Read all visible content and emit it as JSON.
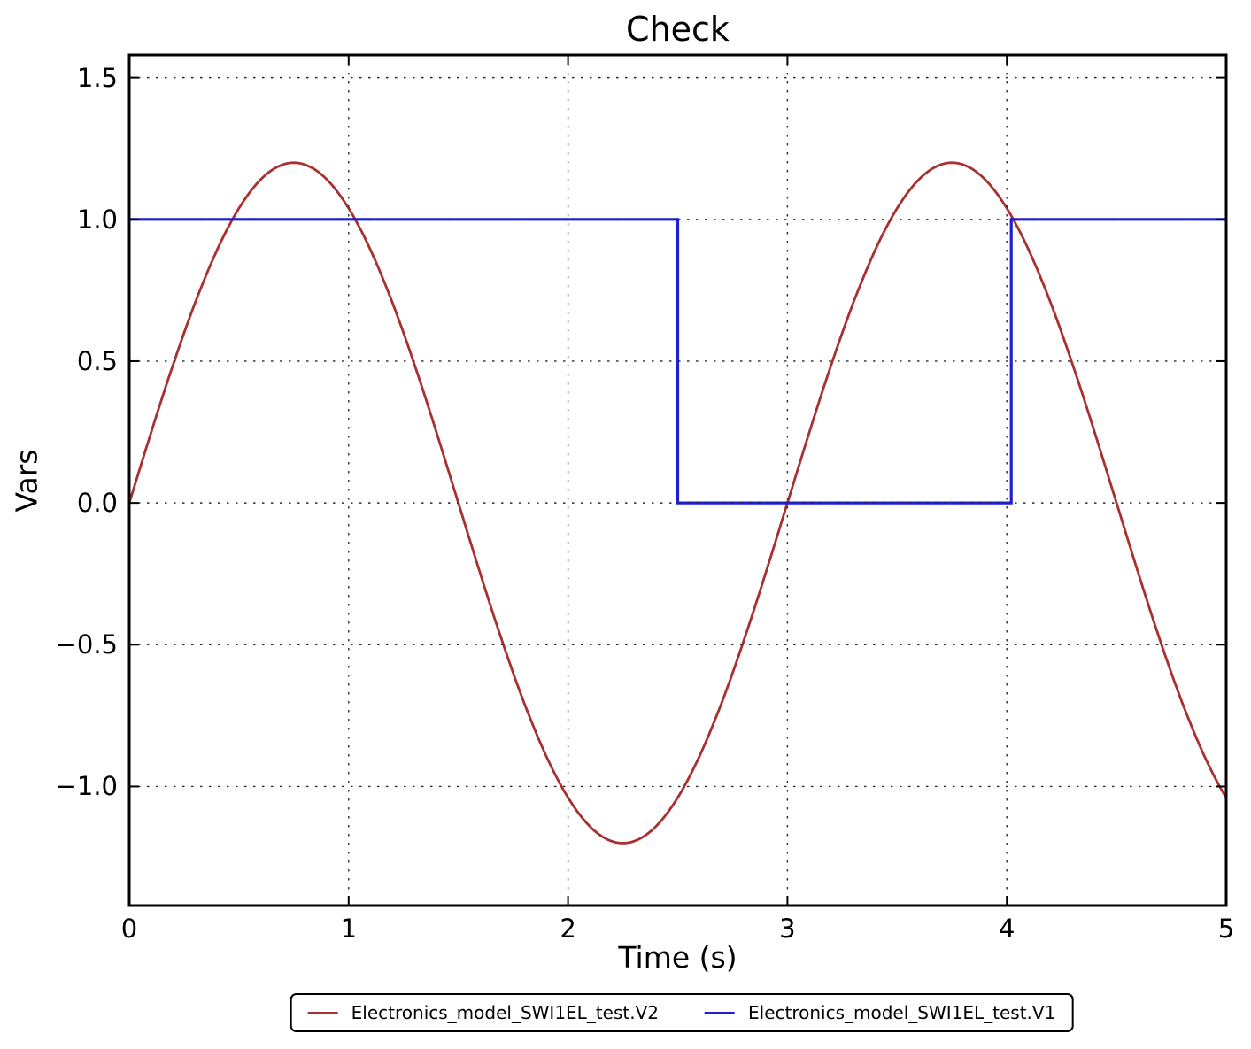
{
  "chart_data": {
    "type": "line",
    "title": "Check",
    "xlabel": "Time (s)",
    "ylabel": "Vars",
    "xlim": [
      0,
      5
    ],
    "ylim": [
      -1.42,
      1.58
    ],
    "xticks": [
      0,
      1,
      2,
      3,
      4,
      5
    ],
    "xtick_labels": [
      "0",
      "1",
      "2",
      "3",
      "4",
      "5"
    ],
    "yticks": [
      -1.0,
      -0.5,
      0.0,
      0.5,
      1.0,
      1.5
    ],
    "ytick_labels": [
      "−1.0",
      "−0.5",
      "0.0",
      "0.5",
      "1.0",
      "1.5"
    ],
    "grid": "dotted",
    "grid_color": "#2b2b2b",
    "frame_color": "#000000",
    "legend_position": "below-axes",
    "series": [
      {
        "name": "Electronics_model_SWI1EL_test.V2",
        "color": "#a83030",
        "line_width": 2.8,
        "shape": "sine",
        "amplitude": 1.2,
        "period": 3,
        "phase": 0,
        "x": [
          0,
          0.25,
          0.5,
          0.75,
          1,
          1.25,
          1.5,
          1.75,
          2,
          2.25,
          2.5,
          2.75,
          3,
          3.25,
          3.5,
          3.75,
          4,
          4.25,
          4.5,
          4.75,
          5
        ],
        "y": [
          0,
          0.6,
          1.039,
          1.2,
          1.039,
          0.6,
          0,
          -0.6,
          -1.039,
          -1.2,
          -1.039,
          -0.6,
          0,
          0.6,
          1.039,
          1.2,
          1.039,
          0.6,
          0,
          -0.6,
          -1.039
        ]
      },
      {
        "name": "Electronics_model_SWI1EL_test.V1",
        "color": "#1e1ed2",
        "line_width": 3.2,
        "shape": "step",
        "points": [
          [
            0,
            1
          ],
          [
            2.5,
            1
          ],
          [
            2.5,
            0
          ],
          [
            4.02,
            0
          ],
          [
            4.02,
            1
          ],
          [
            5,
            1
          ]
        ]
      }
    ]
  }
}
